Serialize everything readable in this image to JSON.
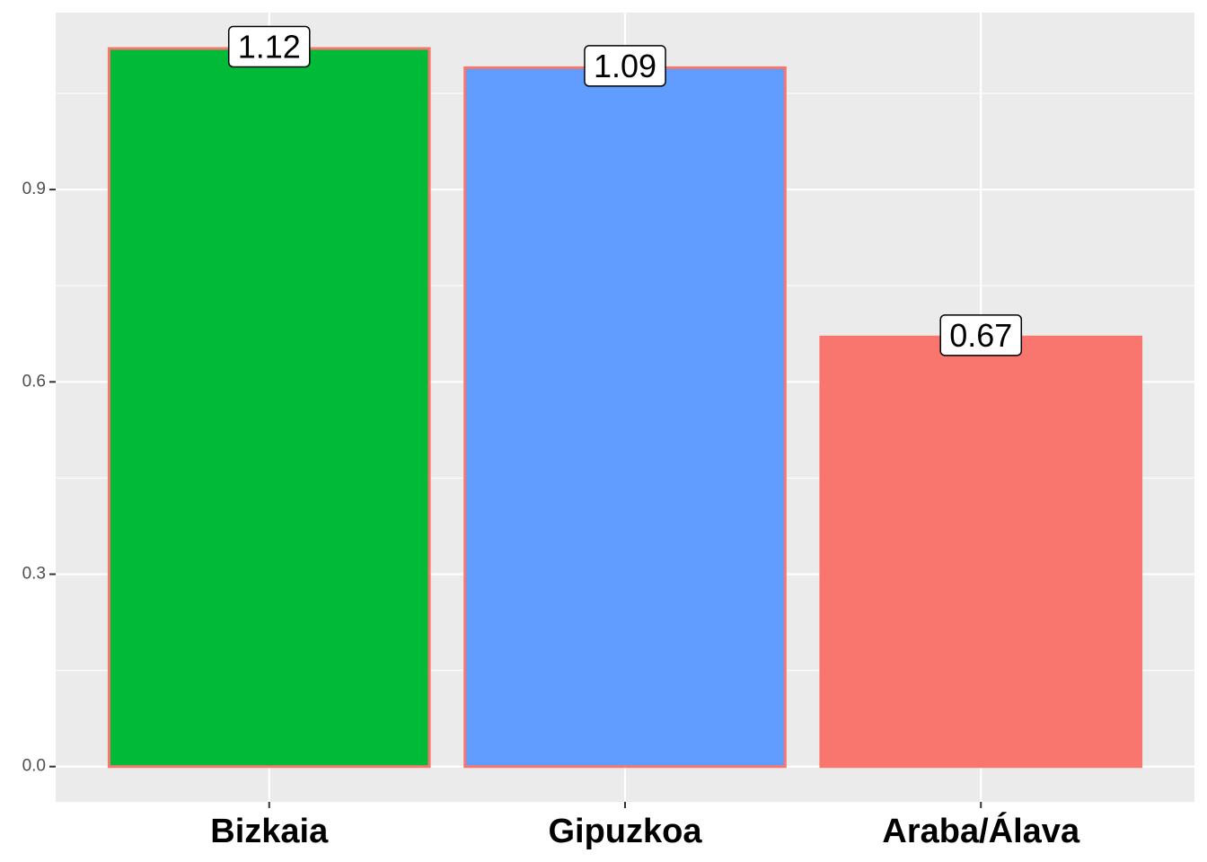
{
  "chart_data": {
    "type": "bar",
    "categories": [
      "Bizkaia",
      "Gipuzkoa",
      "Araba/Álava"
    ],
    "values": [
      1.12,
      1.09,
      0.67
    ],
    "colors": [
      "#00BA38",
      "#619CFF",
      "#F8766D"
    ],
    "outline": "#F8766D",
    "ylim": [
      -0.055,
      1.176
    ],
    "yticks": [
      {
        "value": 0,
        "label": "0.0"
      },
      0.3,
      0.6,
      0.9
    ],
    "yminor": [
      0.15,
      0.45,
      0.75,
      1.05
    ],
    "grid": true
  }
}
